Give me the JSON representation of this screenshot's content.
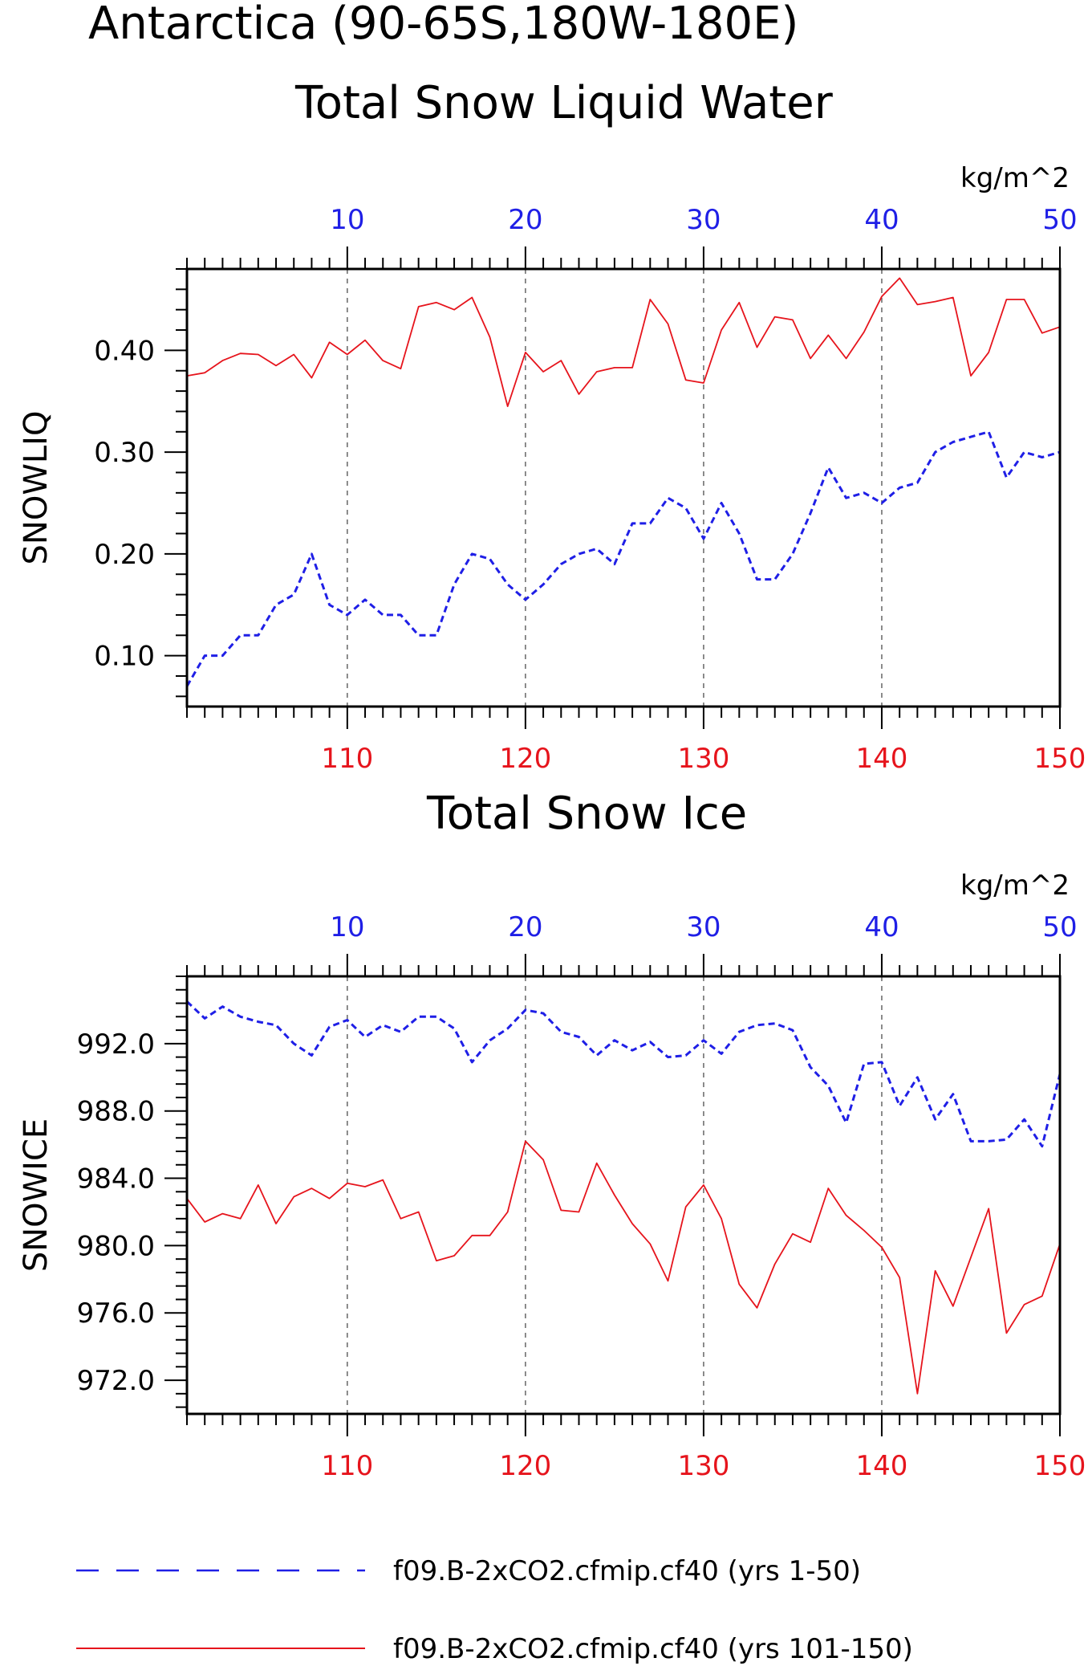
{
  "figure": {
    "title_line1": "Antarctica (90-65S,180W-180E)",
    "title_line2": "Total Snow Liquid Water",
    "colors": {
      "series_a": "#1f1fe6",
      "series_b": "#e6141c",
      "axis": "#000000",
      "grid": "#666666"
    }
  },
  "chart_data": [
    {
      "type": "line",
      "title": "Total Snow Liquid Water",
      "ylabel": "SNOWLIQ",
      "units": "kg/m^2",
      "top_axis": {
        "ticks": [
          10,
          20,
          30,
          40,
          50
        ],
        "range": [
          1,
          50
        ],
        "color": "#1f1fe6"
      },
      "bottom_axis": {
        "ticks": [
          110,
          120,
          130,
          140,
          150
        ],
        "range": [
          101,
          150
        ],
        "color": "#e6141c"
      },
      "ylim": [
        0.05,
        0.48
      ],
      "yticks": [
        "0.10",
        "0.20",
        "0.30",
        "0.40"
      ],
      "grid": "vertical dashed at major x ticks",
      "series": [
        {
          "axis": "top",
          "style": "dashed",
          "color": "#1f1fe6",
          "x_start": 1,
          "values": [
            0.07,
            0.1,
            0.1,
            0.12,
            0.12,
            0.15,
            0.16,
            0.2,
            0.15,
            0.14,
            0.155,
            0.14,
            0.14,
            0.12,
            0.12,
            0.17,
            0.2,
            0.195,
            0.17,
            0.155,
            0.17,
            0.19,
            0.2,
            0.205,
            0.19,
            0.23,
            0.23,
            0.255,
            0.245,
            0.215,
            0.25,
            0.22,
            0.175,
            0.175,
            0.2,
            0.24,
            0.285,
            0.255,
            0.26,
            0.25,
            0.265,
            0.27,
            0.3,
            0.31,
            0.315,
            0.32,
            0.275,
            0.3,
            0.295,
            0.3
          ]
        },
        {
          "axis": "bottom",
          "style": "solid",
          "color": "#e6141c",
          "x_start": 101,
          "values": [
            0.375,
            0.378,
            0.39,
            0.397,
            0.396,
            0.385,
            0.396,
            0.373,
            0.408,
            0.396,
            0.41,
            0.39,
            0.382,
            0.443,
            0.447,
            0.44,
            0.452,
            0.413,
            0.345,
            0.398,
            0.379,
            0.39,
            0.357,
            0.379,
            0.383,
            0.383,
            0.45,
            0.426,
            0.371,
            0.368,
            0.42,
            0.447,
            0.403,
            0.433,
            0.43,
            0.392,
            0.415,
            0.392,
            0.418,
            0.453,
            0.471,
            0.445,
            0.448,
            0.452,
            0.375,
            0.398,
            0.45,
            0.45,
            0.417,
            0.423
          ]
        }
      ]
    },
    {
      "type": "line",
      "title": "Total Snow Ice",
      "ylabel": "SNOWICE",
      "units": "kg/m^2",
      "top_axis": {
        "ticks": [
          10,
          20,
          30,
          40,
          50
        ],
        "range": [
          1,
          50
        ],
        "color": "#1f1fe6"
      },
      "bottom_axis": {
        "ticks": [
          110,
          120,
          130,
          140,
          150
        ],
        "range": [
          101,
          150
        ],
        "color": "#e6141c"
      },
      "ylim": [
        970.0,
        996.0
      ],
      "yticks": [
        "972.0",
        "976.0",
        "980.0",
        "984.0",
        "988.0",
        "992.0"
      ],
      "grid": "vertical dashed at major x ticks",
      "series": [
        {
          "axis": "top",
          "style": "dashed",
          "color": "#1f1fe6",
          "x_start": 1,
          "values": [
            994.5,
            993.5,
            994.2,
            993.6,
            993.3,
            993.1,
            992.0,
            991.3,
            993.0,
            993.4,
            992.4,
            993.1,
            992.7,
            993.6,
            993.6,
            992.9,
            990.9,
            992.2,
            992.9,
            994.0,
            993.8,
            992.7,
            992.4,
            991.3,
            992.2,
            991.6,
            992.1,
            991.2,
            991.3,
            992.2,
            991.4,
            992.7,
            993.1,
            993.2,
            992.8,
            990.6,
            989.5,
            987.3,
            990.8,
            990.9,
            988.3,
            990.0,
            987.5,
            989.0,
            986.2,
            986.2,
            986.3,
            987.5,
            985.9,
            990.2
          ]
        },
        {
          "axis": "bottom",
          "style": "solid",
          "color": "#e6141c",
          "x_start": 101,
          "values": [
            982.8,
            981.4,
            981.9,
            981.6,
            983.6,
            981.3,
            982.9,
            983.4,
            982.8,
            983.7,
            983.5,
            983.9,
            981.6,
            982.0,
            979.1,
            979.4,
            980.6,
            980.6,
            982.0,
            986.2,
            985.1,
            982.1,
            982.0,
            984.9,
            983.0,
            981.3,
            980.1,
            977.9,
            982.3,
            983.6,
            981.6,
            977.7,
            976.3,
            978.9,
            980.7,
            980.2,
            983.4,
            981.8,
            980.9,
            979.9,
            978.1,
            971.2,
            978.5,
            976.4,
            979.3,
            982.2,
            974.8,
            976.5,
            977.0,
            980.1
          ]
        }
      ]
    }
  ],
  "legend": [
    {
      "label": "f09.B-2xCO2.cfmip.cf40 (yrs 1-50)",
      "style": "dashed",
      "color": "#1f1fe6"
    },
    {
      "label": "f09.B-2xCO2.cfmip.cf40 (yrs 101-150)",
      "style": "solid",
      "color": "#e6141c"
    }
  ]
}
